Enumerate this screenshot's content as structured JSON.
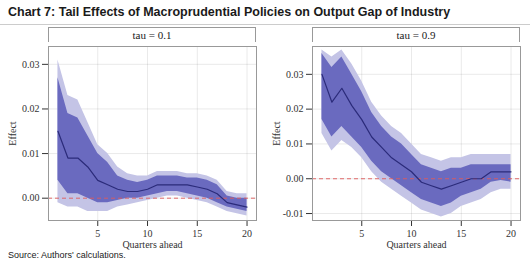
{
  "title": "Chart 7: Tail Effects of Macroprudential Policies on Output Gap of Industry",
  "source": "Source: Authors' calculations.",
  "chart_data": [
    {
      "type": "line",
      "subtitle": "tau = 0.1",
      "x_label": "Quarters ahead",
      "y_label": "Effect",
      "x": [
        1,
        2,
        3,
        4,
        5,
        6,
        7,
        8,
        9,
        10,
        11,
        12,
        13,
        14,
        15,
        16,
        17,
        18,
        19,
        20
      ],
      "values": [
        0.015,
        0.009,
        0.009,
        0.007,
        0.004,
        0.003,
        0.002,
        0.0015,
        0.0015,
        0.002,
        0.003,
        0.003,
        0.003,
        0.003,
        0.0025,
        0.002,
        0.001,
        -0.001,
        -0.0015,
        -0.002
      ],
      "color": "#2b2b7a",
      "bands": [
        {
          "color": "#c4c4e6",
          "lower": [
            -0.001,
            -0.002,
            -0.002,
            -0.003,
            -0.003,
            -0.003,
            -0.002,
            -0.0015,
            -0.001,
            -0.0005,
            0.0,
            0.0005,
            0.0005,
            0.0,
            -0.0005,
            -0.001,
            -0.002,
            -0.003,
            -0.0035,
            -0.004
          ],
          "upper": [
            0.031,
            0.023,
            0.022,
            0.017,
            0.012,
            0.01,
            0.007,
            0.0055,
            0.005,
            0.005,
            0.006,
            0.006,
            0.006,
            0.0055,
            0.0055,
            0.005,
            0.004,
            0.0015,
            0.001,
            0.001
          ]
        },
        {
          "color": "#6a6abf",
          "lower": [
            0.004,
            0.001,
            0.001,
            0.0,
            -0.001,
            -0.001,
            -0.0005,
            0.0,
            0.0,
            0.0005,
            0.001,
            0.0015,
            0.0015,
            0.001,
            0.0005,
            0.0,
            -0.001,
            -0.002,
            -0.0025,
            -0.003
          ],
          "upper": [
            0.027,
            0.019,
            0.018,
            0.014,
            0.01,
            0.008,
            0.005,
            0.004,
            0.0035,
            0.004,
            0.005,
            0.005,
            0.005,
            0.0045,
            0.0045,
            0.004,
            0.003,
            0.0005,
            0.0,
            0.0
          ]
        }
      ],
      "reference_line": {
        "value": 0,
        "color": "#e05a5a",
        "line_style": "dashed"
      },
      "xlim": [
        0.05,
        20.95
      ],
      "xticks": [
        5,
        10,
        15,
        20
      ],
      "ylim": [
        -0.005,
        0.034
      ],
      "yticks": [
        {
          "value": 0,
          "label": "0.00"
        },
        0.01,
        0.02,
        0.03
      ],
      "grid": true
    },
    {
      "type": "line",
      "subtitle": "tau = 0.9",
      "x_label": "Quarters ahead",
      "y_label": "Effect",
      "x": [
        1,
        2,
        3,
        4,
        5,
        6,
        7,
        8,
        9,
        10,
        11,
        12,
        13,
        14,
        15,
        16,
        17,
        18,
        19,
        20
      ],
      "values": [
        0.03,
        0.022,
        0.026,
        0.021,
        0.017,
        0.012,
        0.009,
        0.006,
        0.004,
        0.002,
        -0.001,
        -0.002,
        -0.003,
        -0.002,
        -0.001,
        0.0,
        0.0,
        0.002,
        0.002,
        0.002
      ],
      "color": "#2b2b7a",
      "bands": [
        {
          "color": "#c4c4e6",
          "lower": [
            0.013,
            0.008,
            0.011,
            0.009,
            0.006,
            0.002,
            -0.001,
            -0.003,
            -0.005,
            -0.007,
            -0.009,
            -0.01,
            -0.011,
            -0.01,
            -0.008,
            -0.007,
            -0.006,
            -0.004,
            -0.003,
            -0.003
          ],
          "upper": [
            0.037,
            0.035,
            0.037,
            0.033,
            0.028,
            0.022,
            0.018,
            0.015,
            0.013,
            0.01,
            0.007,
            0.006,
            0.005,
            0.006,
            0.006,
            0.007,
            0.007,
            0.007,
            0.007,
            0.007
          ]
        },
        {
          "color": "#6a6abf",
          "lower": [
            0.017,
            0.012,
            0.015,
            0.012,
            0.009,
            0.005,
            0.002,
            0.0,
            -0.002,
            -0.004,
            -0.006,
            -0.007,
            -0.008,
            -0.007,
            -0.005,
            -0.004,
            -0.003,
            -0.001,
            -0.0005,
            -0.001
          ],
          "upper": [
            0.036,
            0.032,
            0.035,
            0.03,
            0.025,
            0.019,
            0.015,
            0.012,
            0.01,
            0.007,
            0.004,
            0.003,
            0.002,
            0.003,
            0.003,
            0.004,
            0.004,
            0.004,
            0.004,
            0.004
          ]
        }
      ],
      "reference_line": {
        "value": 0,
        "color": "#e05a5a",
        "line_style": "dashed"
      },
      "xlim": [
        0.05,
        20.95
      ],
      "xticks": [
        5,
        10,
        15,
        20
      ],
      "ylim": [
        -0.012,
        0.038
      ],
      "yticks": [
        -0.01,
        {
          "value": 0,
          "label": "0.00"
        },
        0.01,
        0.02,
        0.03
      ],
      "grid": true
    }
  ]
}
